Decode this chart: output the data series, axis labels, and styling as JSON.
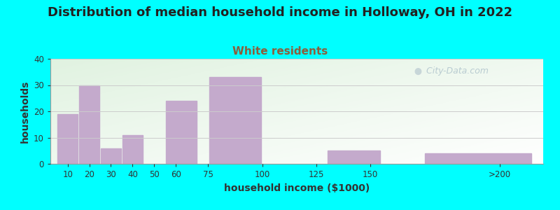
{
  "title": "Distribution of median household income in Holloway, OH in 2022",
  "subtitle": "White residents",
  "xlabel": "household income ($1000)",
  "ylabel": "households",
  "background_outer": "#00FFFF",
  "bar_color": "#C4AACC",
  "title_fontsize": 13,
  "subtitle_fontsize": 11,
  "subtitle_color": "#8B7355",
  "xlabel_fontsize": 10,
  "ylabel_fontsize": 10,
  "tick_labels": [
    "10",
    "20",
    "30",
    "40",
    "50",
    "60",
    "75",
    "100",
    "125",
    "150",
    ">200"
  ],
  "tick_positions": [
    10,
    20,
    30,
    40,
    50,
    60,
    75,
    100,
    125,
    150,
    210
  ],
  "bar_heights": [
    19,
    30,
    6,
    11,
    0,
    24,
    0,
    33,
    0,
    5,
    4
  ],
  "bar_lefts": [
    5,
    15,
    25,
    35,
    45,
    55,
    60,
    75,
    100,
    130,
    175
  ],
  "bar_widths": [
    10,
    10,
    10,
    10,
    10,
    15,
    15,
    25,
    25,
    25,
    50
  ],
  "xlim": [
    2,
    230
  ],
  "ylim": [
    0,
    40
  ],
  "yticks": [
    0,
    10,
    20,
    30,
    40
  ],
  "watermark": "  City-Data.com"
}
